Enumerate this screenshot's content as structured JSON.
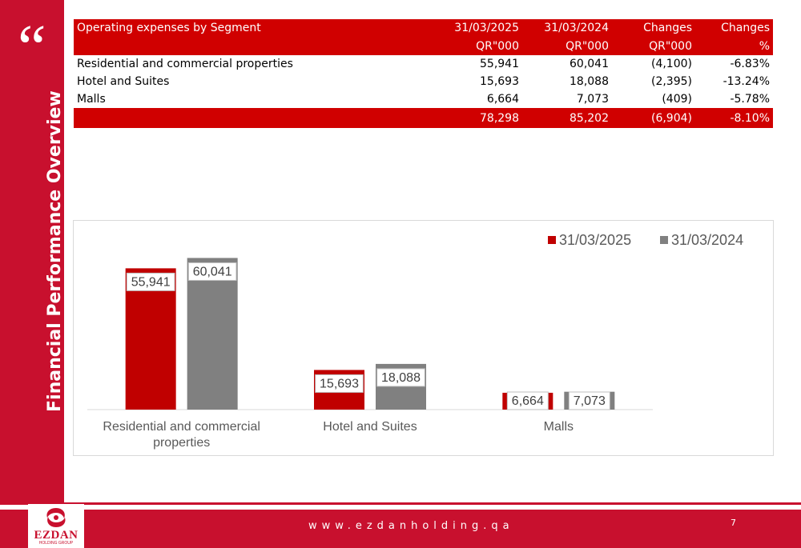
{
  "sidebar": {
    "quote_mark": "“",
    "title": "Financial Performance Overview"
  },
  "table": {
    "header_row1": [
      "Operating expenses by Segment",
      "31/03/2025",
      "31/03/2024",
      "Changes",
      "Changes"
    ],
    "header_row2": [
      "",
      "QR\"000",
      "QR\"000",
      "QR\"000",
      "%"
    ],
    "rows": [
      [
        "Residential and commercial properties",
        "55,941",
        "60,041",
        "(4,100)",
        "-6.83%"
      ],
      [
        "Hotel and Suites",
        "15,693",
        "18,088",
        "(2,395)",
        "-13.24%"
      ],
      [
        "Malls",
        "6,664",
        "7,073",
        "(409)",
        "-5.78%"
      ]
    ],
    "total_row": [
      "",
      "78,298",
      "85,202",
      "(6,904)",
      "-8.10%"
    ]
  },
  "chart_data": {
    "type": "bar",
    "categories": [
      "Residential and commercial properties",
      "Hotel and Suites",
      "Malls"
    ],
    "category_labels": [
      [
        "Residential and commercial",
        "properties"
      ],
      [
        "Hotel and Suites"
      ],
      [
        "Malls"
      ]
    ],
    "series": [
      {
        "name": "31/03/2025",
        "values": [
          55941,
          15693,
          6664
        ],
        "labels": [
          "55,941",
          "15,693",
          "6,664"
        ],
        "color": "#c00000"
      },
      {
        "name": "31/03/2024",
        "values": [
          60041,
          18088,
          7073
        ],
        "labels": [
          "60,041",
          "18,088",
          "7,073"
        ],
        "color": "#808080"
      }
    ],
    "title": "",
    "xlabel": "",
    "ylabel": "",
    "ylim": [
      0,
      70000
    ],
    "grid": false,
    "legend_position": "top-right"
  },
  "footer": {
    "logo_text": "EZDAN",
    "logo_subtext": "HOLDING GROUP",
    "website": "www.ezdanholding.qa",
    "page_number": "7"
  },
  "colors": {
    "brand_red": "#c8102e",
    "table_red": "#d00000",
    "series_2025": "#c00000",
    "series_2024": "#808080"
  }
}
